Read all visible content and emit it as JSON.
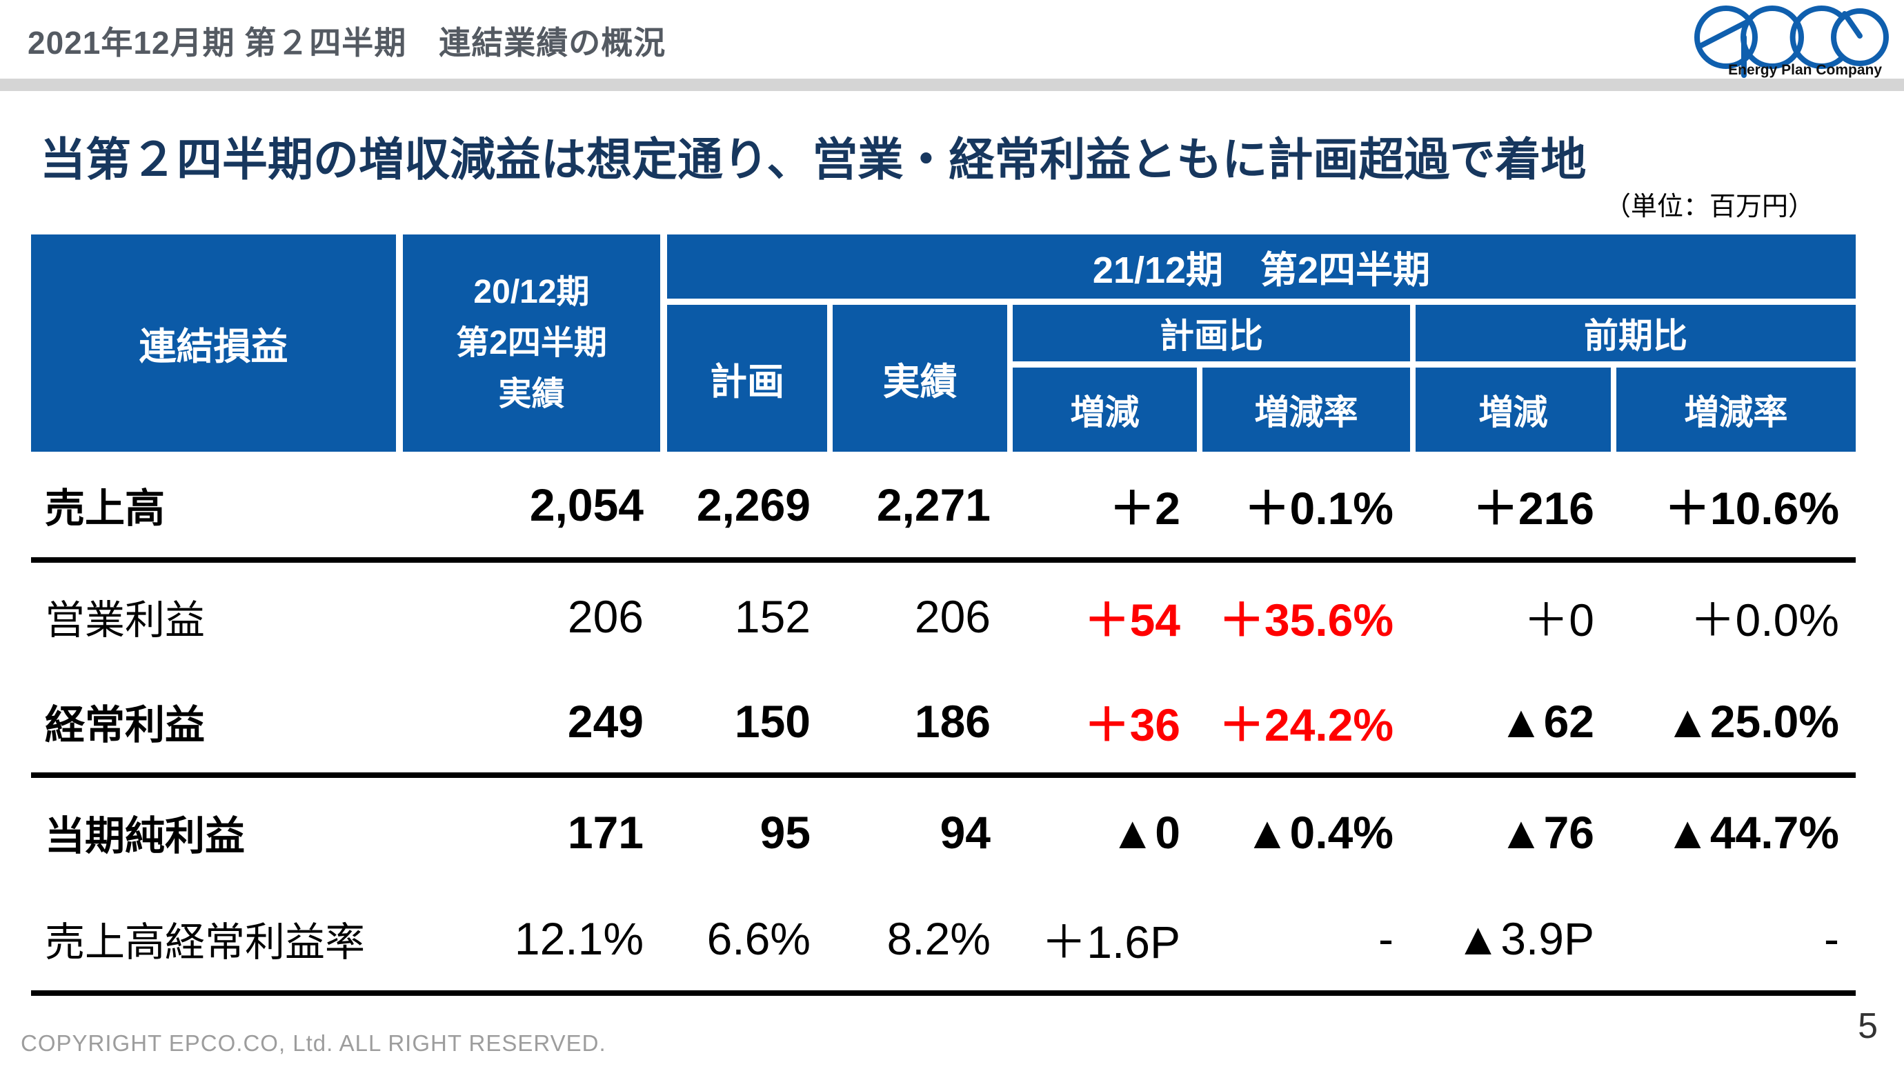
{
  "slide": {
    "header_title": "2021年12月期 第２四半期　連結業績の概況",
    "headline": "当第２四半期の増収減益は想定通り、営業・経常利益ともに計画超過で着地",
    "unit_note": "（単位：百万円）",
    "footer_copyright": "COPYRIGHT EPCO.CO, Ltd. ALL RIGHT RESERVED.",
    "page_number": "5"
  },
  "logo": {
    "name": "epco",
    "tagline": "Energy Plan Company"
  },
  "colors": {
    "header_blue": "#0b5aa7",
    "headline_navy": "#17375e",
    "negative_red": "#ff0000",
    "logo_blue": "#0f5fae"
  },
  "table": {
    "corner_label": "連結損益",
    "prev_col_lines": [
      "20/12期",
      "第2四半期",
      "実績"
    ],
    "current_span_label": "21/12期　第2四半期",
    "col_plan": "計画",
    "col_actual": "実績",
    "group_vs_plan": "計画比",
    "group_vs_prev": "前期比",
    "col_change": "増減",
    "col_change_rate": "増減率",
    "rows": [
      {
        "label": "売上高",
        "emphasis": true,
        "cells": [
          {
            "t": "2,054"
          },
          {
            "t": "2,269"
          },
          {
            "t": "2,271"
          },
          {
            "t": "＋2"
          },
          {
            "t": "＋0.1%"
          },
          {
            "t": "＋216"
          },
          {
            "t": "＋10.6%"
          }
        ]
      },
      {
        "label": "営業利益",
        "emphasis": false,
        "cells": [
          {
            "t": "206"
          },
          {
            "t": "152"
          },
          {
            "t": "206"
          },
          {
            "t": "＋54",
            "red": true
          },
          {
            "t": "＋35.6%",
            "red": true
          },
          {
            "t": "＋0"
          },
          {
            "t": "＋0.0%"
          }
        ]
      },
      {
        "label": "経常利益",
        "emphasis": true,
        "cells": [
          {
            "t": "249"
          },
          {
            "t": "150"
          },
          {
            "t": "186"
          },
          {
            "t": "＋36",
            "red": true
          },
          {
            "t": "＋24.2%",
            "red": true
          },
          {
            "t": "▲62"
          },
          {
            "t": "▲25.0%"
          }
        ]
      },
      {
        "label": "当期純利益",
        "emphasis": true,
        "cells": [
          {
            "t": "171"
          },
          {
            "t": "95"
          },
          {
            "t": "94"
          },
          {
            "t": "▲0"
          },
          {
            "t": "▲0.4%"
          },
          {
            "t": "▲76"
          },
          {
            "t": "▲44.7%"
          }
        ]
      },
      {
        "label": "売上高経常利益率",
        "emphasis": false,
        "cells": [
          {
            "t": "12.1%"
          },
          {
            "t": "6.6%"
          },
          {
            "t": "8.2%"
          },
          {
            "t": "＋1.6P"
          },
          {
            "t": "-"
          },
          {
            "t": "▲3.9P"
          },
          {
            "t": "-"
          }
        ]
      }
    ]
  }
}
